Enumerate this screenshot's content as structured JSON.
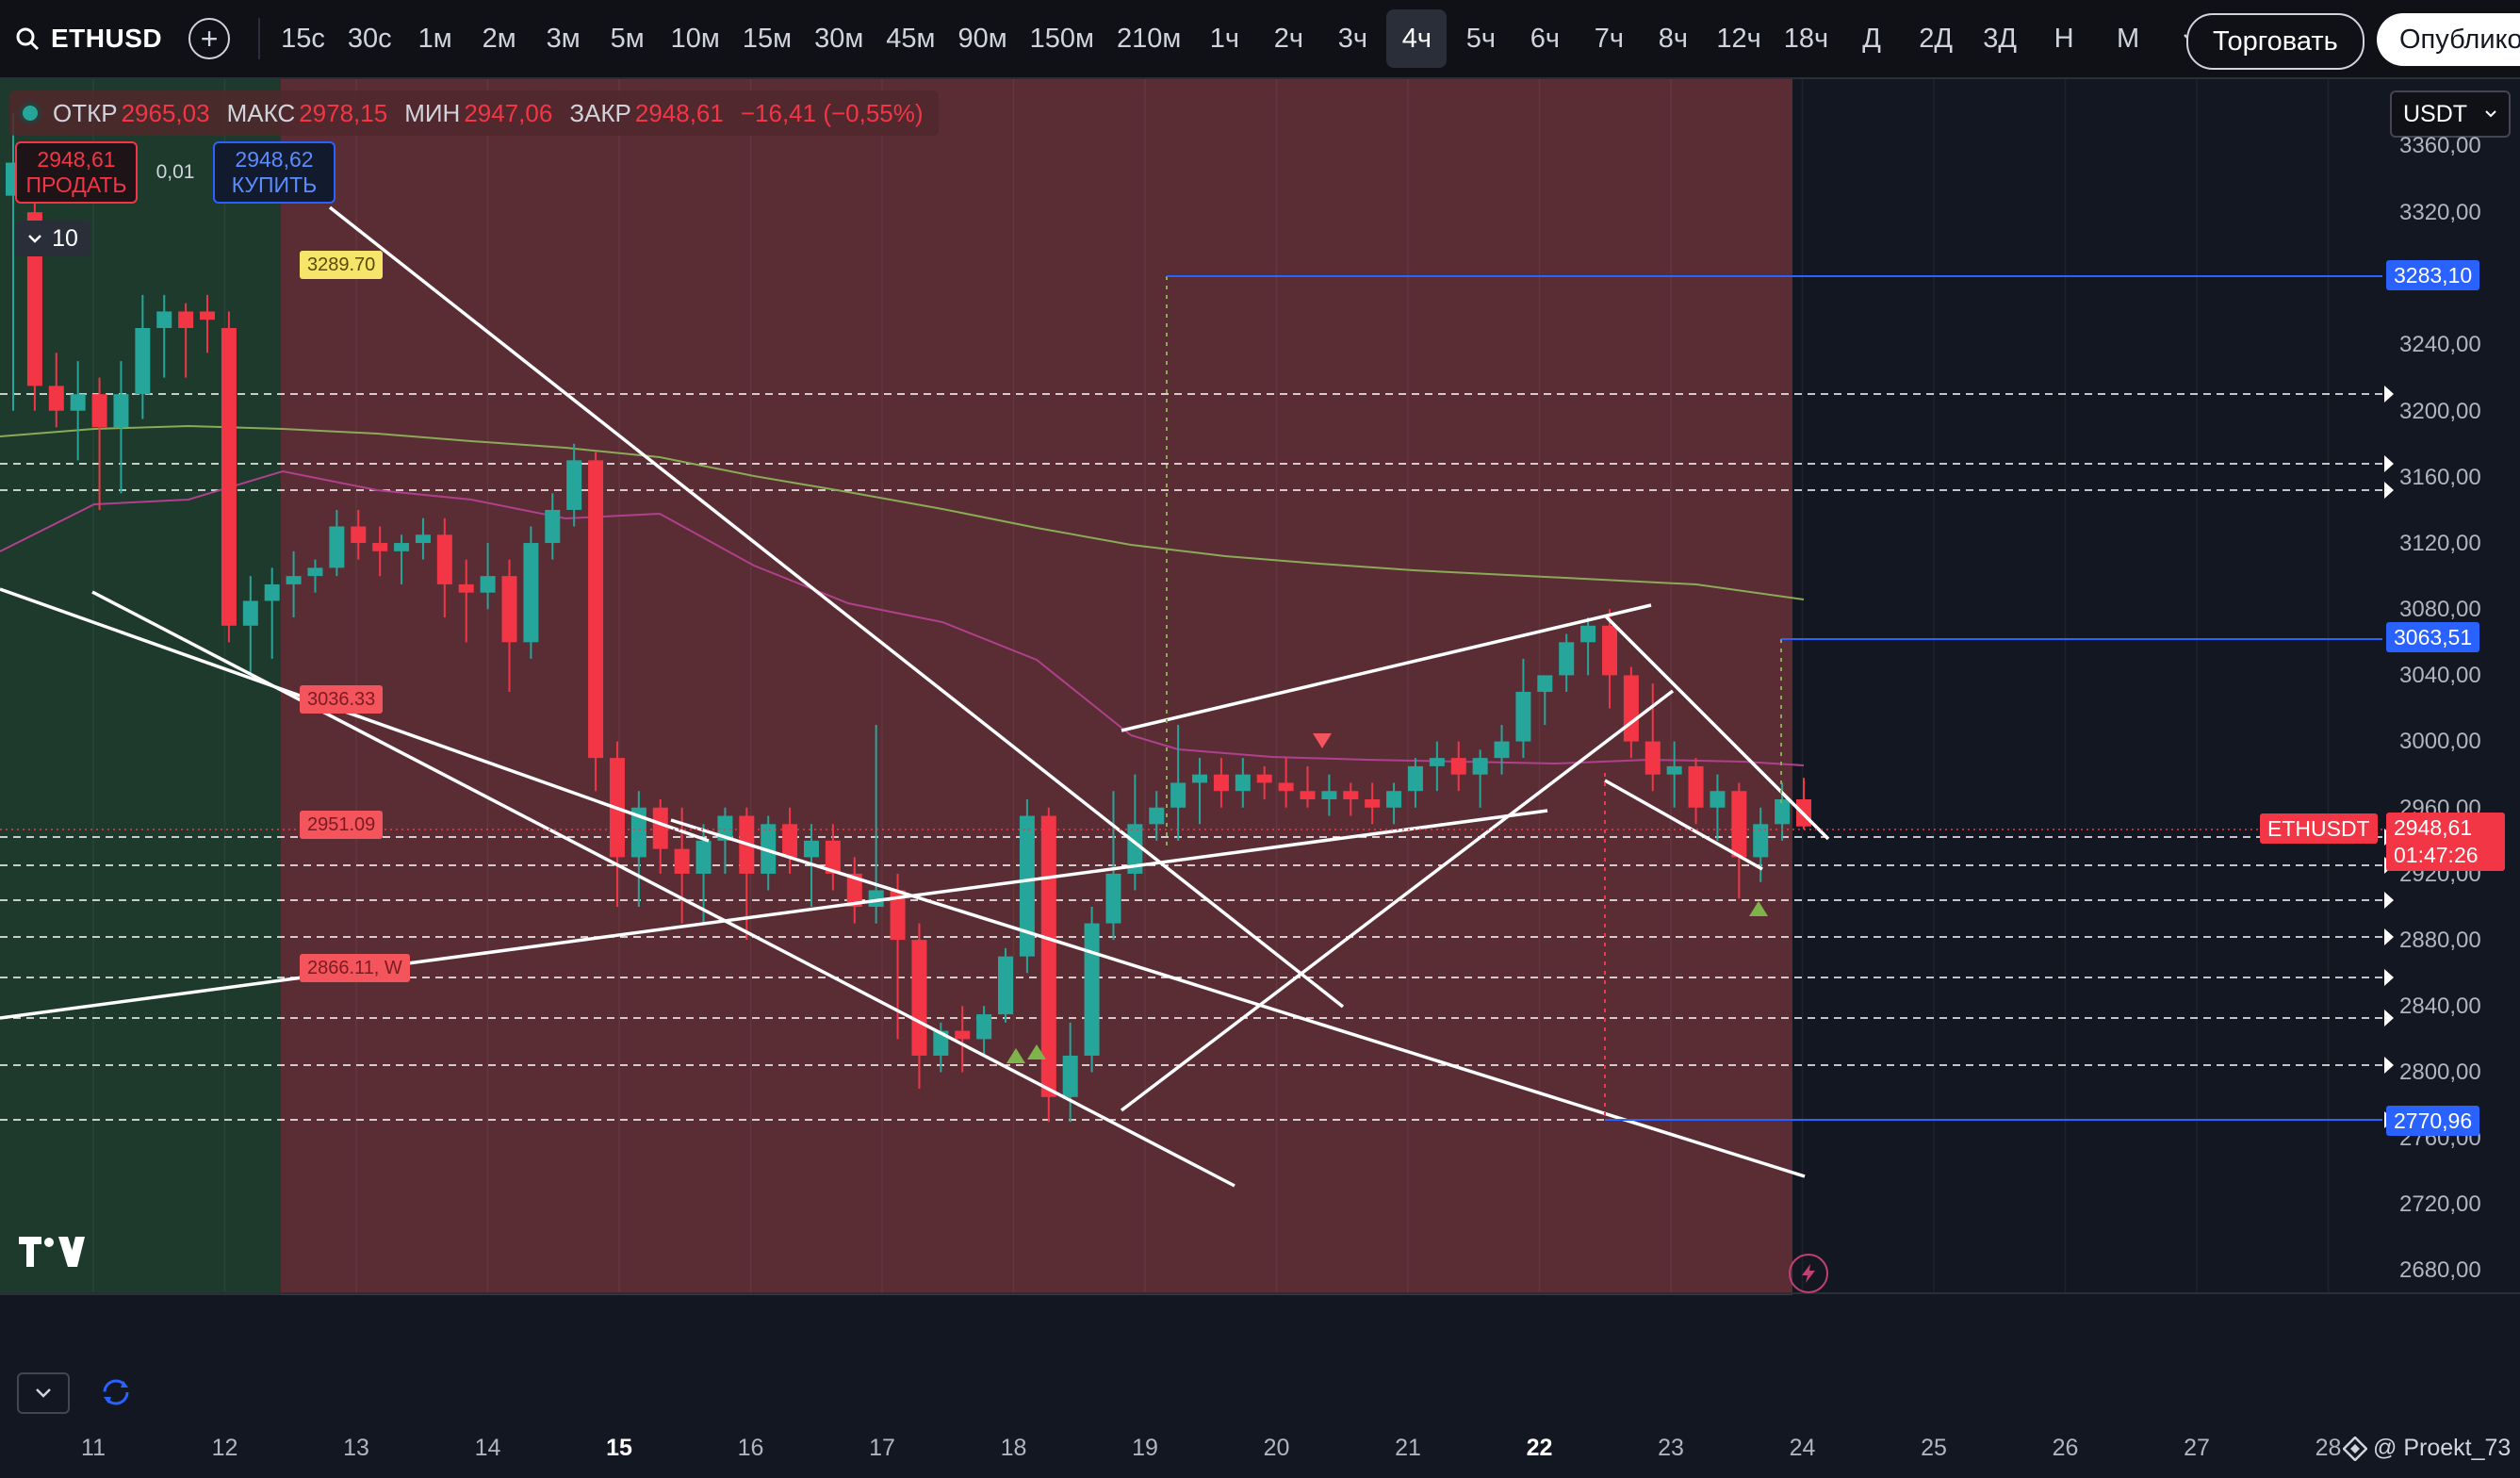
{
  "toolbar": {
    "symbol": "ETHUSD",
    "timeframes": [
      "15с",
      "30с",
      "1м",
      "2м",
      "3м",
      "5м",
      "10м",
      "15м",
      "30м",
      "45м",
      "90м",
      "150м",
      "210м",
      "1ч",
      "2ч",
      "3ч",
      "4ч",
      "5ч",
      "6ч",
      "7ч",
      "8ч",
      "12ч",
      "18ч",
      "Д",
      "2Д",
      "3Д",
      "Н",
      "М"
    ],
    "active_timeframe": "4ч",
    "trade_label": "Торговать",
    "publish_label": "Опублико"
  },
  "ohlc": {
    "open_label": "ОТКР",
    "open": "2965,03",
    "high_label": "МАКС",
    "high": "2978,15",
    "low_label": "МИН",
    "low": "2947,06",
    "close_label": "ЗАКР",
    "close": "2948,61",
    "change": "−16,41 (−0,55%)"
  },
  "trade_panel": {
    "sell_price": "2948,61",
    "sell_label": "ПРОДАТЬ",
    "spread": "0,01",
    "buy_price": "2948,62",
    "buy_label": "КУПИТЬ",
    "quantity": "10"
  },
  "currency": "USDT",
  "price_axis": {
    "labels": [
      "3360,00",
      "3320,00",
      "3240,00",
      "3200,00",
      "3160,00",
      "3120,00",
      "3080,00",
      "3040,00",
      "3000,00",
      "2960,00",
      "2920,00",
      "2880,00",
      "2840,00",
      "2800,00",
      "2760,00",
      "2720,00",
      "2680,00"
    ],
    "tag_upper": "3283,10",
    "tag_mid": "3063,51",
    "tag_lower": "2770,96",
    "current_symbol": "ETHUSDT",
    "current_price": "2948,61",
    "countdown": "01:47:26"
  },
  "pattern_labels": {
    "yellow": "3289.70",
    "red_1": "3036.33",
    "red_2": "2951.09",
    "red_3": "2866.11, W"
  },
  "time_axis": [
    "11",
    "12",
    "13",
    "14",
    "15",
    "16",
    "17",
    "18",
    "19",
    "20",
    "21",
    "22",
    "23",
    "24",
    "25",
    "26",
    "27",
    "28"
  ],
  "watermark": "@ Proekt_73",
  "colors": {
    "up": "#26a69a",
    "down": "#f23645",
    "bg": "#131722",
    "red_zone": "#5a2d35",
    "green_zone": "#1d3a2c",
    "accent_blue": "#2962ff"
  }
}
